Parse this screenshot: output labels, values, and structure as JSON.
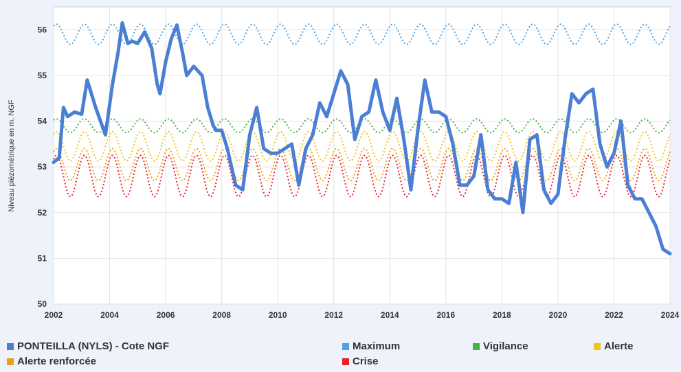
{
  "chart_data": {
    "type": "line",
    "ylabel": "Niveau piézométrique en m. NGF",
    "xlabel": "",
    "title": "",
    "xlim": [
      2002,
      2024
    ],
    "ylim": [
      50,
      56.5
    ],
    "x_ticks": [
      "2002",
      "2004",
      "2006",
      "2008",
      "2010",
      "2012",
      "2014",
      "2016",
      "2018",
      "2020",
      "2022",
      "2024"
    ],
    "y_ticks": [
      "50",
      "51",
      "52",
      "53",
      "54",
      "55",
      "56"
    ],
    "grid": true,
    "legend_position": "bottom",
    "series": [
      {
        "name": "PONTEILLA (NYLS) - Cote NGF",
        "color": "#4a7fd4",
        "style": "solid",
        "x": [
          2002.0,
          2002.2,
          2002.35,
          2002.5,
          2002.75,
          2003.0,
          2003.2,
          2003.5,
          2003.85,
          2004.1,
          2004.3,
          2004.45,
          2004.65,
          2004.8,
          2005.0,
          2005.25,
          2005.5,
          2005.7,
          2005.8,
          2006.0,
          2006.2,
          2006.4,
          2006.6,
          2006.75,
          2007.0,
          2007.3,
          2007.5,
          2007.7,
          2007.8,
          2008.0,
          2008.2,
          2008.5,
          2008.75,
          2009.0,
          2009.25,
          2009.5,
          2009.75,
          2010.0,
          2010.25,
          2010.5,
          2010.75,
          2011.0,
          2011.25,
          2011.5,
          2011.75,
          2012.0,
          2012.25,
          2012.5,
          2012.75,
          2013.0,
          2013.25,
          2013.5,
          2013.75,
          2014.0,
          2014.25,
          2014.5,
          2014.75,
          2015.0,
          2015.25,
          2015.5,
          2015.75,
          2016.0,
          2016.25,
          2016.5,
          2016.75,
          2017.0,
          2017.25,
          2017.5,
          2017.75,
          2018.0,
          2018.25,
          2018.5,
          2018.75,
          2019.0,
          2019.25,
          2019.5,
          2019.75,
          2020.0,
          2020.25,
          2020.5,
          2020.75,
          2021.0,
          2021.25,
          2021.5,
          2021.75,
          2022.0,
          2022.25,
          2022.5,
          2022.75,
          2023.0,
          2023.25,
          2023.5,
          2023.75,
          2024.0
        ],
        "y": [
          53.1,
          53.2,
          54.3,
          54.1,
          54.2,
          54.15,
          54.9,
          54.3,
          53.7,
          54.8,
          55.5,
          56.15,
          55.7,
          55.75,
          55.7,
          55.95,
          55.6,
          54.8,
          54.6,
          55.3,
          55.8,
          56.1,
          55.5,
          55.0,
          55.2,
          55.0,
          54.3,
          53.9,
          53.8,
          53.8,
          53.4,
          52.6,
          52.5,
          53.7,
          54.3,
          53.4,
          53.3,
          53.3,
          53.4,
          53.5,
          52.6,
          53.4,
          53.7,
          54.4,
          54.1,
          54.6,
          55.1,
          54.8,
          53.6,
          54.1,
          54.2,
          54.9,
          54.2,
          53.8,
          54.5,
          53.6,
          52.5,
          53.8,
          54.9,
          54.2,
          54.2,
          54.1,
          53.5,
          52.6,
          52.6,
          52.8,
          53.7,
          52.5,
          52.3,
          52.3,
          52.2,
          53.1,
          52.0,
          53.6,
          53.7,
          52.5,
          52.2,
          52.4,
          53.6,
          54.6,
          54.4,
          54.6,
          54.7,
          53.5,
          53.0,
          53.3,
          54.0,
          52.6,
          52.3,
          52.3,
          52.0,
          51.7,
          51.2,
          51.1
        ]
      },
      {
        "name": "Maximum",
        "color": "#4aa3e8",
        "style": "dotted",
        "base": 55.9,
        "amplitude": 0.22
      },
      {
        "name": "Vigilance",
        "color": "#4cae4c",
        "style": "dotted",
        "base": 53.9,
        "amplitude": 0.15
      },
      {
        "name": "Alerte",
        "color": "#f0c419",
        "style": "dotted",
        "base": 53.45,
        "amplitude": 0.32
      },
      {
        "name": "Alerte renforcée",
        "color": "#f39c12",
        "style": "dotted",
        "base": 53.05,
        "amplitude": 0.35
      },
      {
        "name": "Crise",
        "color": "#e8212b",
        "style": "dotted",
        "base": 52.8,
        "amplitude": 0.45
      }
    ]
  }
}
